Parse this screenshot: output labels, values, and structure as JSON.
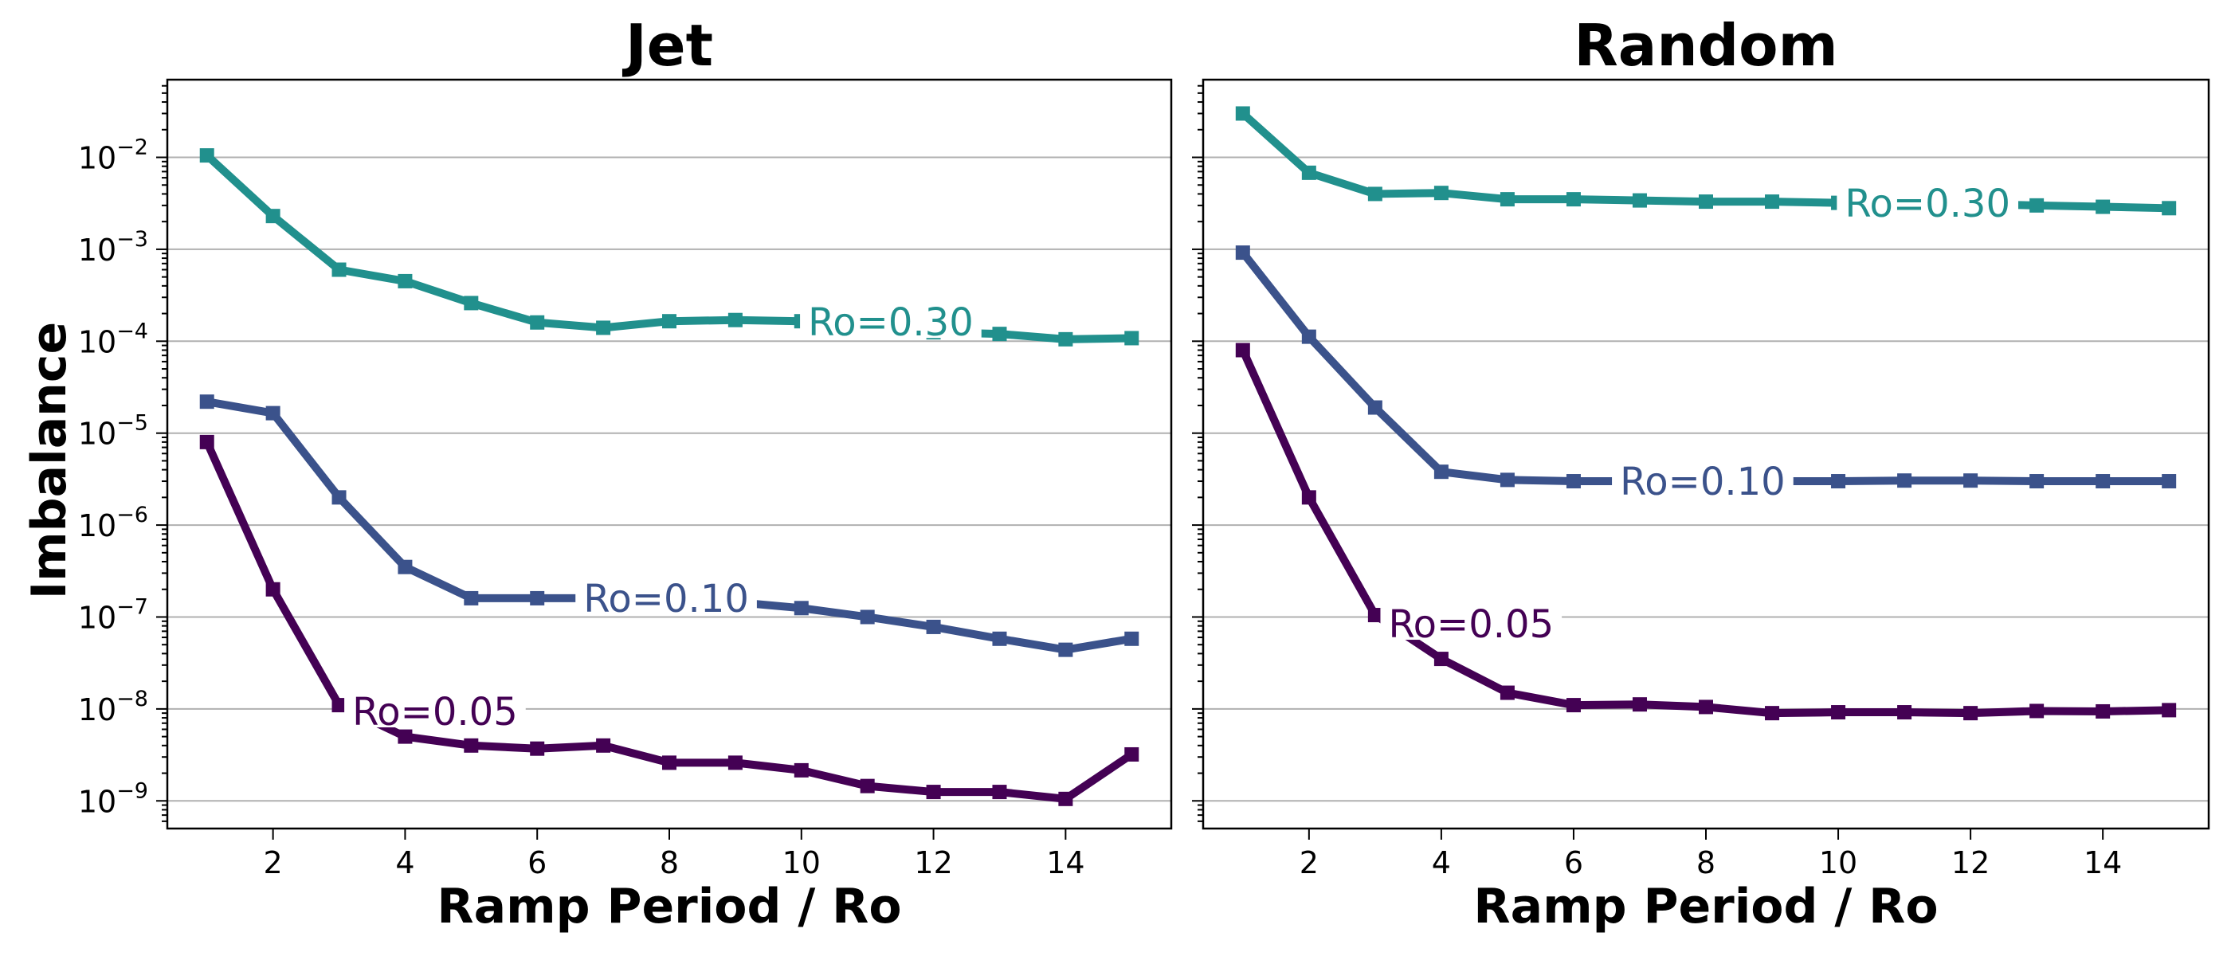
{
  "chart_data": [
    {
      "type": "line",
      "title": "Jet",
      "xlabel": "Ramp Period / Ro",
      "ylabel": "Imbalance",
      "yscale": "log",
      "xlim": [
        0.4,
        15.6
      ],
      "ylim": [
        5e-10,
        0.07
      ],
      "xticks": [
        2,
        4,
        6,
        8,
        10,
        12,
        14
      ],
      "yticks": [
        {
          "value": 1e-09,
          "base": "10",
          "exp": "−9"
        },
        {
          "value": 1e-08,
          "base": "10",
          "exp": "−8"
        },
        {
          "value": 1e-07,
          "base": "10",
          "exp": "−7"
        },
        {
          "value": 1e-06,
          "base": "10",
          "exp": "−6"
        },
        {
          "value": 1e-05,
          "base": "10",
          "exp": "−5"
        },
        {
          "value": 0.0001,
          "base": "10",
          "exp": "−4"
        },
        {
          "value": 0.001,
          "base": "10",
          "exp": "−3"
        },
        {
          "value": 0.01,
          "base": "10",
          "exp": "−2"
        }
      ],
      "grid": "y",
      "x": [
        1,
        2,
        3,
        4,
        5,
        6,
        7,
        8,
        9,
        10,
        11,
        12,
        13,
        14,
        15
      ],
      "series": [
        {
          "name": "Ro=0.30",
          "color": "#21908d",
          "label_x": 10.1,
          "values": [
            0.0105,
            0.0023,
            0.0006,
            0.00045,
            0.00026,
            0.00016,
            0.00014,
            0.000165,
            0.00017,
            0.000165,
            0.000135,
            0.000125,
            0.00012,
            0.000105,
            0.000108
          ]
        },
        {
          "name": "Ro=0.10",
          "color": "#3b528b",
          "label_x": 6.7,
          "values": [
            2.2e-05,
            1.65e-05,
            2e-06,
            3.5e-07,
            1.6e-07,
            1.6e-07,
            1.6e-07,
            1.5e-07,
            1.45e-07,
            1.25e-07,
            1e-07,
            7.8e-08,
            5.8e-08,
            4.4e-08,
            5.8e-08
          ]
        },
        {
          "name": "Ro=0.05",
          "color": "#440154",
          "label_x": 3.2,
          "values": [
            8e-06,
            2e-07,
            1.1e-08,
            5e-09,
            4e-09,
            3.7e-09,
            4e-09,
            2.6e-09,
            2.6e-09,
            2.15e-09,
            1.45e-09,
            1.25e-09,
            1.25e-09,
            1.05e-09,
            3.2e-09
          ]
        }
      ]
    },
    {
      "type": "line",
      "title": "Random",
      "xlabel": "Ramp Period / Ro",
      "ylabel": "",
      "yscale": "log",
      "xlim": [
        0.4,
        15.6
      ],
      "ylim": [
        5e-10,
        0.07
      ],
      "xticks": [
        2,
        4,
        6,
        8,
        10,
        12,
        14
      ],
      "grid": "y",
      "x": [
        1,
        2,
        3,
        4,
        5,
        6,
        7,
        8,
        9,
        10,
        11,
        12,
        13,
        14,
        15
      ],
      "series": [
        {
          "name": "Ro=0.30",
          "color": "#21908d",
          "label_x": 10.1,
          "values": [
            0.03,
            0.0068,
            0.004,
            0.0041,
            0.0035,
            0.0035,
            0.0034,
            0.0033,
            0.0033,
            0.0032,
            0.0031,
            0.0031,
            0.003,
            0.0029,
            0.0028
          ]
        },
        {
          "name": "Ro=0.10",
          "color": "#3b528b",
          "label_x": 6.7,
          "values": [
            0.00092,
            0.000112,
            1.9e-05,
            3.8e-06,
            3.1e-06,
            3e-06,
            3e-06,
            3e-06,
            3e-06,
            3e-06,
            3.05e-06,
            3.05e-06,
            3e-06,
            3e-06,
            3e-06
          ]
        },
        {
          "name": "Ro=0.05",
          "color": "#440154",
          "label_x": 3.2,
          "values": [
            8e-05,
            2e-06,
            1.05e-07,
            3.5e-08,
            1.5e-08,
            1.1e-08,
            1.12e-08,
            1.05e-08,
            9e-09,
            9.2e-09,
            9.2e-09,
            9e-09,
            9.5e-09,
            9.4e-09,
            9.7e-09
          ]
        }
      ]
    }
  ]
}
